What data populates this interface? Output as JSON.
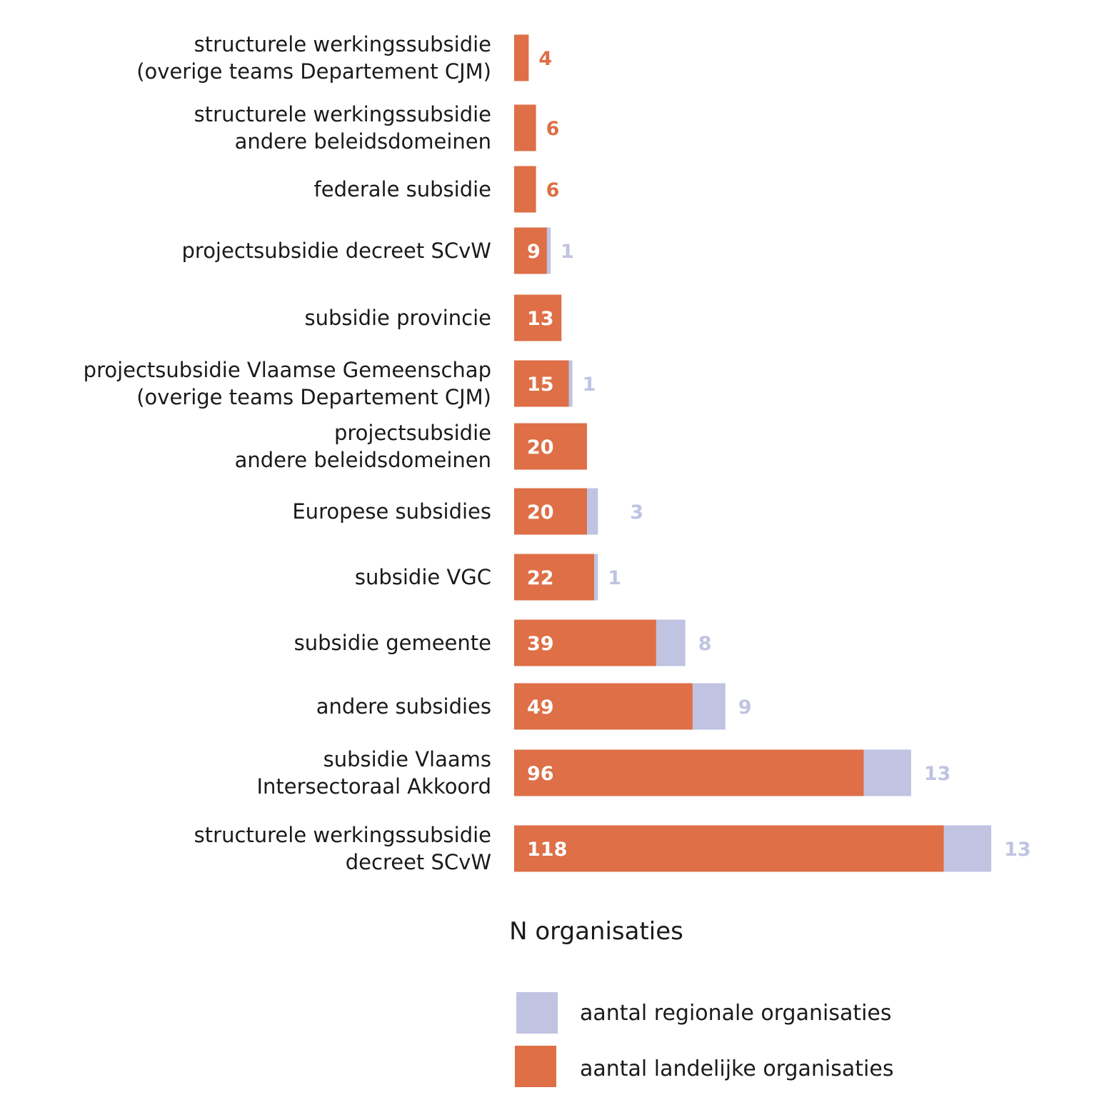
{
  "chart_data": {
    "type": "bar",
    "orientation": "horizontal",
    "stacked": true,
    "xlabel": "N organisaties",
    "categories": [
      [
        "structurele werkingssubsidie",
        "(overige teams Departement CJM)"
      ],
      [
        "structurele werkingssubsidie",
        "andere beleidsdomeinen"
      ],
      [
        "federale subsidie"
      ],
      [
        "projectsubsidie decreet SCvW"
      ],
      [
        "subsidie provincie"
      ],
      [
        "projectsubsidie Vlaamse Gemeenschap",
        "(overige teams Departement CJM)"
      ],
      [
        "projectsubsidie",
        "andere beleidsdomeinen"
      ],
      [
        "Europese subsidies"
      ],
      [
        "subsidie VGC"
      ],
      [
        "subsidie gemeente"
      ],
      [
        "andere subsidies"
      ],
      [
        "subsidie Vlaams",
        "Intersectoraal Akkoord"
      ],
      [
        "structurele werkingssubsidie",
        "decreet SCvW"
      ]
    ],
    "series": [
      {
        "name": "aantal landelijke organisaties",
        "color": "#DE6F47",
        "values": [
          4,
          6,
          6,
          9,
          13,
          15,
          20,
          20,
          22,
          39,
          49,
          96,
          118
        ]
      },
      {
        "name": "aantal regionale organisaties",
        "color": "#C0C3E2",
        "values": [
          0,
          0,
          0,
          1,
          0,
          1,
          0,
          3,
          1,
          8,
          9,
          13,
          13
        ]
      }
    ],
    "legend": {
      "placement": "bottom",
      "order": [
        "aantal regionale organisaties",
        "aantal landelijke organisaties"
      ]
    },
    "grid": false
  }
}
